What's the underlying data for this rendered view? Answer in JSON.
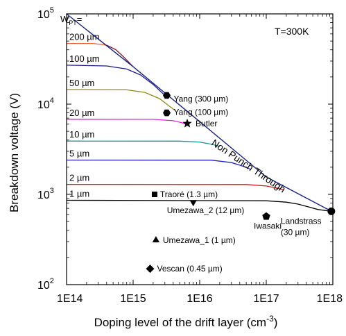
{
  "chart_data": {
    "type": "line",
    "xscale": "log",
    "yscale": "log",
    "xlim": [
      100000000000000.0,
      1e+18
    ],
    "ylim": [
      100,
      100000
    ],
    "xticks": [
      {
        "value": 100000000000000.0,
        "label": "1E14"
      },
      {
        "value": 1000000000000000.0,
        "label": "1E15"
      },
      {
        "value": 1e+16,
        "label": "1E16"
      },
      {
        "value": 1e+17,
        "label": "1E17"
      },
      {
        "value": 1e+18,
        "label": "1E18"
      }
    ],
    "yticks": [
      {
        "value": 100,
        "base": "10",
        "exp": "2"
      },
      {
        "value": 1000,
        "base": "10",
        "exp": "3"
      },
      {
        "value": 10000,
        "base": "10",
        "exp": "4"
      },
      {
        "value": 100000,
        "base": "10",
        "exp": "5"
      }
    ],
    "xlabel": {
      "main": "Doping level of the drift layer (cm",
      "sup": "-3",
      "tail": ")"
    },
    "ylabel": "Breakdown voltage (V)",
    "temperature_label": "T=300K",
    "npt_label": "Non Punch Through",
    "wpt_label": {
      "main": "W",
      "sub": "PT",
      "tail": "="
    },
    "npt_line": {
      "color": "#1a237e",
      "x": [
        100000000000000.0,
        1000000000000000.0,
        1e+16,
        1e+17,
        9.5e+17
      ],
      "y": [
        100000,
        26000,
        6400,
        1560,
        650
      ]
    },
    "series": [
      {
        "label": "200 µm",
        "color": "#e8602c",
        "color2": "#7b1530",
        "plateau": 47000,
        "x": [
          100000000000000.0,
          250000000000000.0,
          400000000000000.0,
          550000000000000.0,
          700000000000000.0,
          1000000000000000.0
        ],
        "y": [
          47000,
          47000,
          45000,
          40000,
          34000,
          26000
        ]
      },
      {
        "label": "100 µm",
        "color": "#1c1a8a",
        "plateau": 27000,
        "x": [
          100000000000000.0,
          400000000000000.0,
          800000000000000.0,
          1300000000000000.0,
          2000000000000000.0,
          3000000000000000.0
        ],
        "y": [
          27000,
          26500,
          24500,
          21000,
          16500,
          12500
        ]
      },
      {
        "label": "50 µm",
        "color": "#8a8a1a",
        "plateau": 14500,
        "x": [
          100000000000000.0,
          800000000000000.0,
          1500000000000000.0,
          2500000000000000.0,
          3500000000000000.0,
          4300000000000000.0
        ],
        "y": [
          14500,
          14400,
          13500,
          11500,
          9500,
          8500
        ]
      },
      {
        "label": "20 µm",
        "color": "#e020e0",
        "plateau": 6800,
        "x": [
          100000000000000.0,
          2000000000000000.0,
          4000000000000000.0,
          5500000000000000.0,
          6600000000000000.0
        ],
        "y": [
          6800,
          6780,
          6550,
          6200,
          5900
        ]
      },
      {
        "label": "10 µm",
        "color": "#1f9090",
        "plateau": 3900,
        "x": [
          100000000000000.0,
          5000000000000000.0,
          1e+16,
          1.5e+16,
          2e+16
        ],
        "y": [
          3900,
          3890,
          3800,
          3600,
          3400
        ]
      },
      {
        "label": "5 µm",
        "color": "#2020c8",
        "plateau": 2400,
        "x": [
          100000000000000.0,
          1.5e+16,
          3e+16,
          4.5e+16,
          5.8e+16
        ],
        "y": [
          2400,
          2395,
          2250,
          2050,
          1900
        ]
      },
      {
        "label": "2 µm",
        "color": "#d01818",
        "plateau": 1290,
        "x": [
          100000000000000.0,
          5e+16,
          1e+17,
          1.4e+17,
          1.8e+17
        ],
        "y": [
          1290,
          1285,
          1240,
          1180,
          1130
        ]
      },
      {
        "label": "1 µm",
        "color": "#000000",
        "plateau": 860,
        "x": [
          100000000000000.0,
          1e+17,
          2e+17,
          3e+17,
          4.5e+17,
          6e+17,
          9.5e+17
        ],
        "y": [
          860,
          850,
          820,
          780,
          720,
          680,
          650
        ]
      }
    ],
    "points": [
      {
        "label": "Yang (300 µm)",
        "x": 3200000000000000.0,
        "y": 12500,
        "marker": "hexagon",
        "ldx": 10,
        "ldy": 5
      },
      {
        "label": "Yang (100 µm)",
        "x": 3200000000000000.0,
        "y": 8000,
        "marker": "hexagon",
        "ldx": 10,
        "ldy": -1
      },
      {
        "label": "Butler",
        "x": 6500000000000000.0,
        "y": 6100,
        "marker": "star",
        "ldx": 12,
        "ldy": 0
      },
      {
        "label": "Traoré (1.3 µm)",
        "x": 2100000000000000.0,
        "y": 1000,
        "marker": "square",
        "ldx": 8,
        "ldy": 0
      },
      {
        "label": "Umezawa_2 (12 µm)",
        "x": 8000000000000000.0,
        "y": 820,
        "marker": "triangle-down",
        "ldx": -38,
        "ldy": 12
      },
      {
        "label": "Iwasaki",
        "x": 1e+17,
        "y": 570,
        "marker": "pentagon",
        "ldx": -18,
        "ldy": 14
      },
      {
        "label": "Landstrass",
        "x": 9.5e+17,
        "y": 650,
        "marker": "circle",
        "ldx": -73,
        "ldy": 14
      },
      {
        "label": "(30 µm)",
        "x": 9.5e+17,
        "y": 650,
        "marker": "none",
        "ldx": -73,
        "ldy": 30
      },
      {
        "label": "Umezawa_1 (1 µm)",
        "x": 2200000000000000.0,
        "y": 310,
        "marker": "triangle-up",
        "ldx": 10,
        "ldy": 0
      },
      {
        "label": "Vescan (0.45 µm)",
        "x": 1800000000000000.0,
        "y": 150,
        "marker": "diamond",
        "ldx": 10,
        "ldy": 0
      }
    ]
  }
}
